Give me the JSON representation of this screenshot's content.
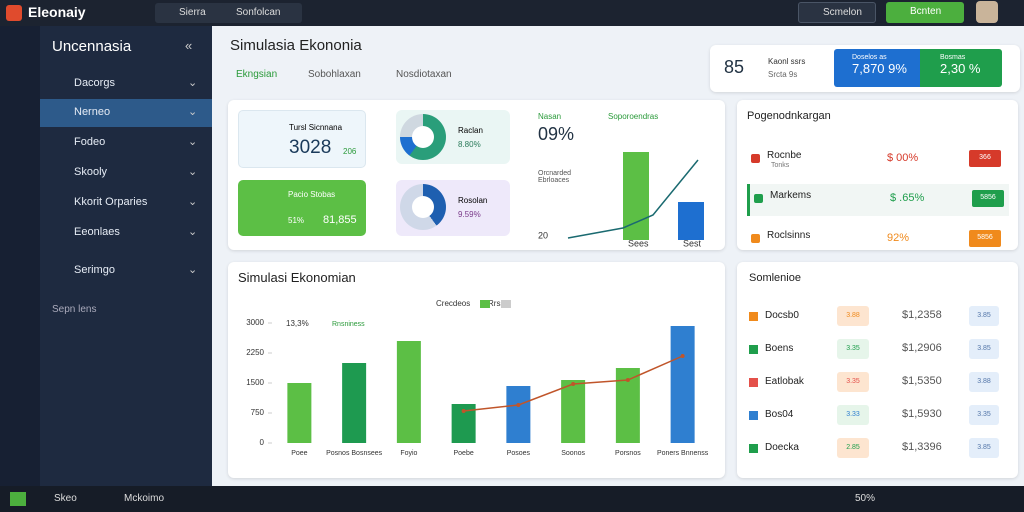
{
  "topbar": {
    "brand": "Eleonaiy",
    "tabs": [
      "Sierra",
      "Sonfolcan"
    ],
    "buttons": [
      "Scmelon",
      "Bcnten"
    ]
  },
  "sidebar": {
    "title": "Uncennasia",
    "items": [
      "Dacorgs",
      "Nerneo",
      "Fodeo",
      "Skooly",
      "Kkorit Orparies",
      "Eeonlaes",
      "Serimgo"
    ],
    "footer": "Sepn lens"
  },
  "header": {
    "title": "Simulasia Ekononia",
    "tabs": [
      "Ekngsian",
      "Sobohlaxan",
      "Nosdiotaxan"
    ]
  },
  "summary": {
    "code": "85",
    "label": "Kaonl ssrs",
    "sublabel": "Srcta 9s",
    "boxes": [
      {
        "label": "Doselos as",
        "value": "7,870 9%"
      },
      {
        "label": "Bosmas",
        "value": "2,30 %"
      }
    ]
  },
  "kpis": [
    {
      "label": "Tursl Sicnnana",
      "value": "3028",
      "delta": "206"
    },
    {
      "label": "Pacio Stobas",
      "sub": "51%",
      "value": "81,855"
    }
  ],
  "donuts": [
    {
      "label": "Raclan",
      "value": "8.80%"
    },
    {
      "label": "Rosolan",
      "value": "9.59%"
    }
  ],
  "mini": {
    "title": "Nasan",
    "value": "09%",
    "legend": "Soporoendras",
    "note": "Orcnarded Ebrloaces",
    "axis": [
      "20",
      "Sees",
      "Sest"
    ]
  },
  "chart_data": {
    "type": "bar",
    "title": "Simulasi Ekonomian",
    "annotation": "13,3%",
    "annotation_label": "Rnsniness",
    "categories": [
      "Poee",
      "Posnos Bosnsees",
      "Foyio",
      "Poebe",
      "Posoes",
      "Soonos",
      "Porsnos",
      "Poners Bnnenss"
    ],
    "series": [
      {
        "name": "Crecdeos",
        "values": [
          1500,
          2000,
          2550,
          975,
          1425,
          1575,
          1875,
          2925
        ],
        "colors": [
          "#5cbf45",
          "#1e9a50",
          "#5cbf45",
          "#1e9a50",
          "#2f7fd0",
          "#5cbf45",
          "#5cbf45",
          "#2f7fd0"
        ]
      },
      {
        "name": "Rrss",
        "type": "line",
        "color": "#c0552a",
        "values": [
          null,
          null,
          null,
          800,
          950,
          1475,
          1575,
          2175
        ]
      }
    ],
    "ylim": [
      0,
      3000
    ],
    "yticks": [
      0,
      750,
      1500,
      2250,
      3000
    ]
  },
  "lists": {
    "top": {
      "title": "Pogenodnkargan",
      "rows": [
        {
          "name": "Rocnbe",
          "sub": "Tonks",
          "value": "$ 00%",
          "badge": "366"
        },
        {
          "name": "Markems",
          "value": "$ .65%",
          "badge": "5856"
        },
        {
          "name": "Roclsinns",
          "value": "92%",
          "badge": "5856"
        }
      ]
    },
    "bottom": {
      "title": "Somlenioe",
      "rows": [
        {
          "name": "Docsb0",
          "tag": "3.88",
          "value": "$1,2358",
          "badge": "3.85"
        },
        {
          "name": "Boens",
          "tag": "3.35",
          "value": "$1,2906",
          "badge": "3.85"
        },
        {
          "name": "Eatlobak",
          "tag": "3.35",
          "value": "$1,5350",
          "badge": "3.88"
        },
        {
          "name": "Bos04",
          "tag": "3.33",
          "value": "$1,5930",
          "badge": "3.35"
        },
        {
          "name": "Doecka",
          "tag": "2.85",
          "value": "$1,3396",
          "badge": "3.85"
        }
      ]
    }
  },
  "statusbar": {
    "items": [
      "Skeo",
      "Mckoimo"
    ],
    "right": "50%"
  }
}
